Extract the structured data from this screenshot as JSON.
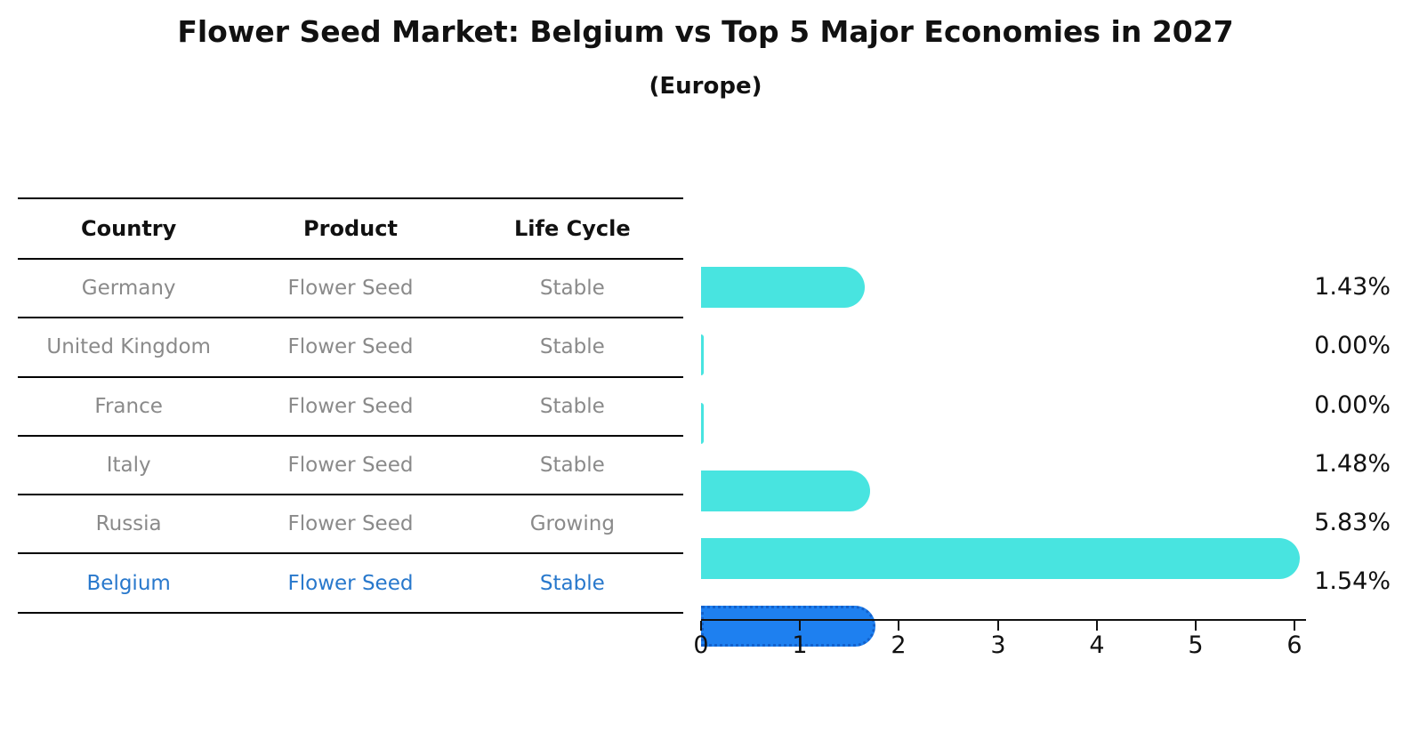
{
  "title": "Flower Seed Market: Belgium vs Top 5 Major Economies in 2027",
  "subtitle": "(Europe)",
  "table": {
    "headers": {
      "country": "Country",
      "product": "Product",
      "life_cycle": "Life Cycle"
    },
    "rows": [
      {
        "country": "Germany",
        "product": "Flower Seed",
        "life_cycle": "Stable",
        "highlight": false
      },
      {
        "country": "United Kingdom",
        "product": "Flower Seed",
        "life_cycle": "Stable",
        "highlight": false
      },
      {
        "country": "France",
        "product": "Flower Seed",
        "life_cycle": "Stable",
        "highlight": false
      },
      {
        "country": "Italy",
        "product": "Flower Seed",
        "life_cycle": "Stable",
        "highlight": false
      },
      {
        "country": "Russia",
        "product": "Flower Seed",
        "life_cycle": "Growing",
        "highlight": false
      },
      {
        "country": "Belgium",
        "product": "Flower Seed",
        "life_cycle": "Stable",
        "highlight": true
      }
    ]
  },
  "chart_data": {
    "type": "bar",
    "orientation": "horizontal",
    "title": "Flower Seed Market: Belgium vs Top 5 Major Economies in 2027",
    "subtitle": "(Europe)",
    "categories": [
      "Germany",
      "United Kingdom",
      "France",
      "Italy",
      "Russia",
      "Belgium"
    ],
    "values": [
      1.43,
      0.0,
      0.0,
      1.48,
      5.83,
      1.54
    ],
    "value_labels": [
      "1.43%",
      "0.00%",
      "0.00%",
      "1.48%",
      "5.83%",
      "1.54%"
    ],
    "xlabel": "",
    "ylabel": "",
    "xlim": [
      0,
      6
    ],
    "xticks": [
      "0",
      "1",
      "2",
      "3",
      "4",
      "5",
      "6"
    ],
    "grid": false,
    "legend": false,
    "highlight_index": 5
  },
  "colors": {
    "bar_color": "#48E4E0",
    "highlight_bar_color": "#1E80F0",
    "highlight_border_color": "#1361CB",
    "row_text": "#8a8a8a",
    "highlight_text": "#2878CC",
    "axis": "#111111"
  }
}
